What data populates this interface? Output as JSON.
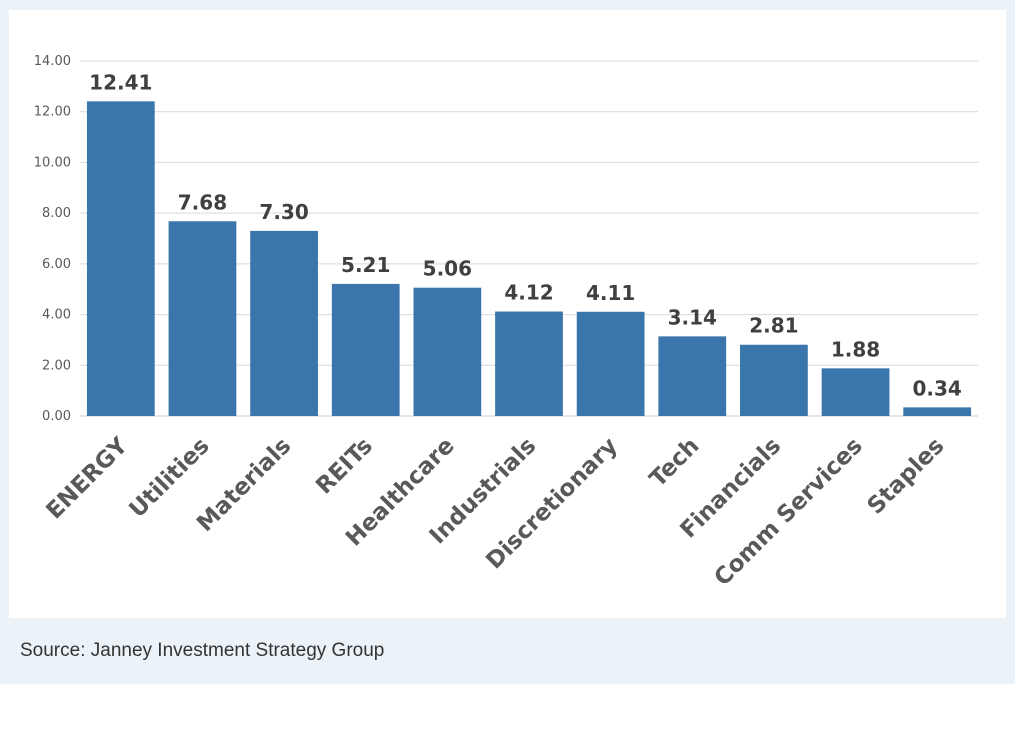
{
  "chart_data": {
    "type": "bar",
    "categories": [
      "ENERGY",
      "Utilities",
      "Materials",
      "REITs",
      "Healthcare",
      "Industrials",
      "Discretionary",
      "Tech",
      "Financials",
      "Comm Services",
      "Staples"
    ],
    "values": [
      12.41,
      7.68,
      7.3,
      5.21,
      5.06,
      4.12,
      4.11,
      3.14,
      2.81,
      1.88,
      0.34
    ],
    "value_labels": [
      "12.41",
      "7.68",
      "7.30",
      "5.21",
      "5.06",
      "4.12",
      "4.11",
      "3.14",
      "2.81",
      "1.88",
      "0.34"
    ],
    "yticks": [
      "0.00",
      "2.00",
      "4.00",
      "6.00",
      "8.00",
      "10.00",
      "12.00",
      "14.00"
    ],
    "ylim": [
      0,
      14
    ],
    "title": "",
    "xlabel": "",
    "ylabel": "",
    "grid": true,
    "bar_color": "#3a76ab"
  },
  "source_text": "Source: Janney Investment Strategy Group"
}
